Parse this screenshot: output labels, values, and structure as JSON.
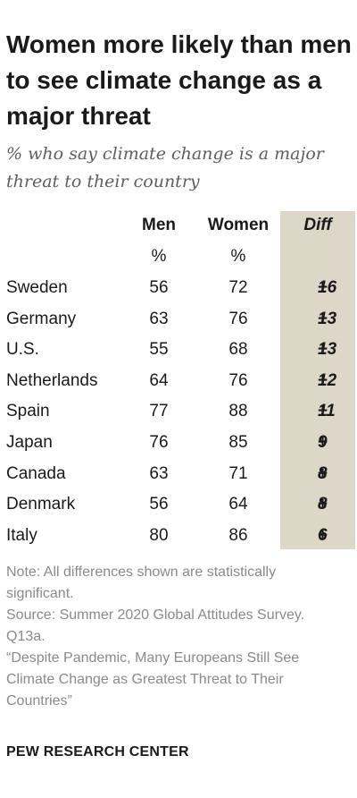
{
  "title": "Women more likely than men to see climate change as a major threat",
  "subtitle": "% who say climate change is a major threat to their country",
  "columns": {
    "men": "Men",
    "women": "Women",
    "diff": "Diff",
    "unit_men": "%",
    "unit_women": "%"
  },
  "chart_data": {
    "type": "table",
    "columns": [
      "Men",
      "Women",
      "Diff"
    ],
    "unit": "%",
    "rows": [
      {
        "country": "Sweden",
        "men": 56,
        "women": 72,
        "diff": 16
      },
      {
        "country": "Germany",
        "men": 63,
        "women": 76,
        "diff": 13
      },
      {
        "country": "U.S.",
        "men": 55,
        "women": 68,
        "diff": 13
      },
      {
        "country": "Netherlands",
        "men": 64,
        "women": 76,
        "diff": 12
      },
      {
        "country": "Spain",
        "men": 77,
        "women": 88,
        "diff": 11
      },
      {
        "country": "Japan",
        "men": 76,
        "women": 85,
        "diff": 9
      },
      {
        "country": "Canada",
        "men": 63,
        "women": 71,
        "diff": 8
      },
      {
        "country": "Denmark",
        "men": 56,
        "women": 64,
        "diff": 8
      },
      {
        "country": "Italy",
        "men": 80,
        "women": 86,
        "diff": 6
      }
    ],
    "diff_prefix": "+"
  },
  "notes": {
    "note": "Note: All differences shown are statistically significant.",
    "source": "Source: Summer 2020 Global Attitudes Survey. Q13a.",
    "report": "“Despite Pandemic, Many Europeans Still See Climate Change as Greatest Threat to Their Countries”"
  },
  "org": "PEW RESEARCH CENTER",
  "colors": {
    "diff_band": "#dcd7c7",
    "note_text": "#8a8a8a",
    "subtitle_text": "#5e5e5e"
  }
}
